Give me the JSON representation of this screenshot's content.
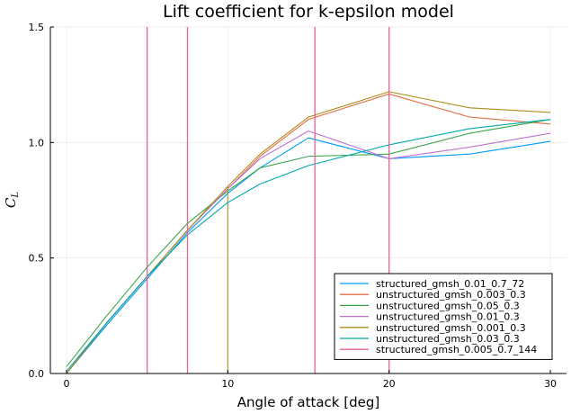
{
  "chart_data": {
    "type": "line",
    "title": "Lift coefficient for k-epsilon model",
    "xlabel": "Angle of attack [deg]",
    "ylabel_main": "C",
    "ylabel_sub": "L",
    "xlim": [
      -1,
      31
    ],
    "ylim": [
      0,
      1.5
    ],
    "xticks": [
      0,
      10,
      20,
      30
    ],
    "yticks": [
      0.0,
      0.5,
      1.0,
      1.5
    ],
    "xtick_labels": [
      "0",
      "10",
      "20",
      "30"
    ],
    "ytick_labels": [
      "0.0",
      "0.5",
      "1.0",
      "1.5"
    ],
    "grid": true,
    "legend_position": "bottom-right",
    "series": [
      {
        "name": "structured_gmsh_0.01_0.7_72",
        "color": "#009AFA",
        "x": [
          0,
          2.5,
          5,
          7.5,
          10,
          12,
          15,
          20,
          25,
          30
        ],
        "y": [
          0.0,
          0.21,
          0.41,
          0.61,
          0.78,
          0.89,
          1.02,
          0.93,
          0.95,
          1.005
        ]
      },
      {
        "name": "unstructured_gmsh_0.003_0.3",
        "color": "#E26F46",
        "x": [
          0,
          2.5,
          5,
          7.5,
          10,
          12,
          15,
          20,
          25,
          30
        ],
        "y": [
          0.0,
          0.22,
          0.42,
          0.62,
          0.8,
          0.94,
          1.1,
          1.21,
          1.11,
          1.08
        ]
      },
      {
        "name": "unstructured_gmsh_0.05_0.3",
        "color": "#3DA44D",
        "x": [
          0,
          2.5,
          5,
          7.5,
          10,
          12,
          15,
          20,
          25,
          30
        ],
        "y": [
          0.03,
          0.25,
          0.46,
          0.65,
          0.79,
          0.89,
          0.94,
          0.95,
          1.04,
          1.1
        ]
      },
      {
        "name": "unstructured_gmsh_0.01_0.3",
        "color": "#C271D2",
        "x": [
          0,
          2.5,
          5,
          7.5,
          10,
          12,
          15,
          20,
          25,
          30
        ],
        "y": [
          0.0,
          0.22,
          0.42,
          0.62,
          0.8,
          0.93,
          1.05,
          0.93,
          0.98,
          1.04
        ]
      },
      {
        "name": "unstructured_gmsh_0.001_0.3",
        "color": "#AC8D18",
        "x": [
          0,
          2.5,
          5,
          7.5,
          10,
          10,
          10,
          12,
          15,
          20,
          25,
          30
        ],
        "y": [
          0.0,
          0.22,
          0.42,
          0.62,
          0.81,
          0.0,
          0.81,
          0.95,
          1.11,
          1.22,
          1.15,
          1.13
        ]
      },
      {
        "name": "unstructured_gmsh_0.03_0.3",
        "color": "#00A9AD",
        "x": [
          0,
          2.5,
          5,
          7.5,
          10,
          12,
          15,
          20,
          25,
          30
        ],
        "y": [
          0.01,
          0.22,
          0.42,
          0.6,
          0.74,
          0.82,
          0.9,
          0.99,
          1.06,
          1.1
        ]
      },
      {
        "name": "structured_gmsh_0.005_0.7_144",
        "color": "#ED5E93",
        "vlines": [
          5,
          7.5,
          15.4,
          20
        ]
      }
    ]
  }
}
